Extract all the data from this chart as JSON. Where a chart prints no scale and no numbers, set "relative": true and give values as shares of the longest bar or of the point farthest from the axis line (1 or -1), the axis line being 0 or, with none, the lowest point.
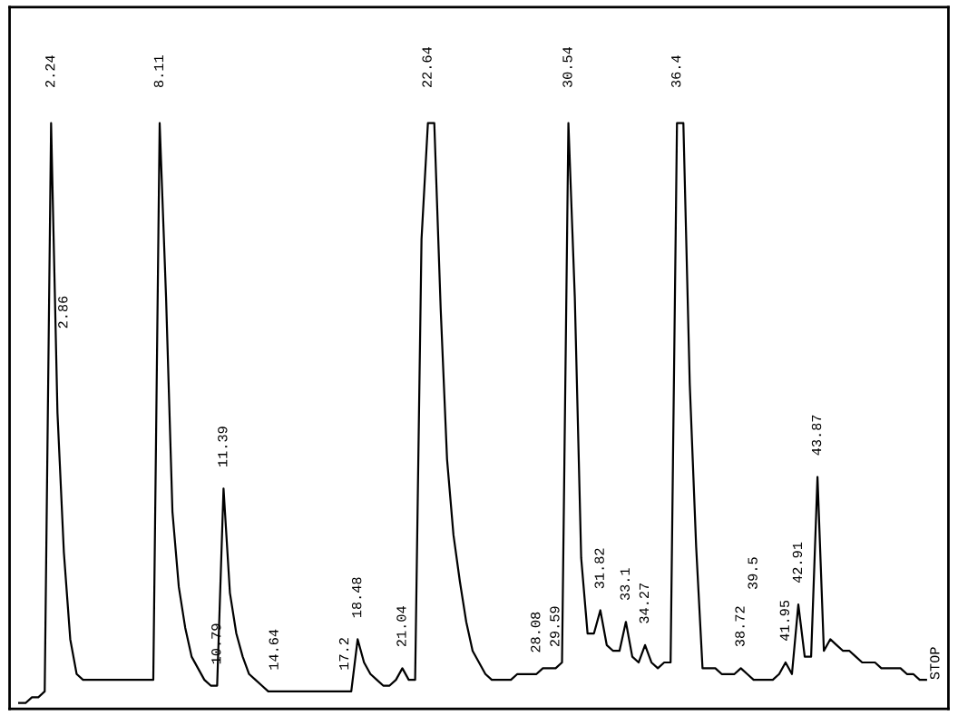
{
  "chart_data": {
    "type": "line",
    "relative": true,
    "marker": "none",
    "line_style": "solid",
    "categories": [
      null,
      null,
      null,
      null,
      null,
      "2.24",
      null,
      "2.86",
      null,
      null,
      null,
      null,
      null,
      null,
      null,
      null,
      null,
      null,
      null,
      null,
      null,
      null,
      "8.11",
      null,
      null,
      null,
      null,
      null,
      null,
      null,
      null,
      "10.79",
      "11.39",
      null,
      null,
      null,
      null,
      null,
      null,
      null,
      "14.64",
      null,
      null,
      null,
      null,
      null,
      null,
      null,
      null,
      null,
      null,
      "17.2",
      null,
      "18.48",
      null,
      null,
      null,
      null,
      null,
      null,
      "21.04",
      null,
      null,
      null,
      "22.64",
      null,
      null,
      null,
      null,
      null,
      null,
      null,
      null,
      null,
      null,
      null,
      null,
      null,
      null,
      null,
      null,
      "28.08",
      null,
      null,
      "29.59",
      null,
      "30.54",
      null,
      null,
      null,
      null,
      "31.82",
      null,
      null,
      null,
      "33.1",
      null,
      null,
      "34.27",
      null,
      null,
      null,
      null,
      "36.4",
      null,
      null,
      null,
      null,
      null,
      null,
      null,
      null,
      null,
      "38.72",
      null,
      "39.5",
      null,
      null,
      null,
      null,
      "41.95",
      null,
      "42.91",
      null,
      null,
      "43.87",
      null,
      null,
      null,
      null,
      null,
      null,
      null,
      null,
      null,
      null,
      null,
      null,
      null,
      null,
      null,
      null,
      null
    ],
    "series": [
      {
        "color": "#000000",
        "values": [
          0.0,
          0.0,
          0.01,
          0.01,
          0.02,
          1.0,
          0.5,
          0.26,
          0.11,
          0.05,
          0.04,
          0.04,
          0.04,
          0.04,
          0.04,
          0.04,
          0.04,
          0.04,
          0.04,
          0.04,
          0.04,
          0.04,
          1.0,
          0.7,
          0.33,
          0.2,
          0.13,
          0.08,
          0.06,
          0.04,
          0.03,
          0.03,
          0.37,
          0.19,
          0.12,
          0.08,
          0.05,
          0.04,
          0.03,
          0.02,
          0.02,
          0.02,
          0.02,
          0.02,
          0.02,
          0.02,
          0.02,
          0.02,
          0.02,
          0.02,
          0.02,
          0.02,
          0.02,
          0.11,
          0.07,
          0.05,
          0.04,
          0.03,
          0.03,
          0.04,
          0.06,
          0.04,
          0.04,
          0.8,
          1.0,
          1.0,
          0.68,
          0.42,
          0.29,
          0.21,
          0.14,
          0.09,
          0.07,
          0.05,
          0.04,
          0.04,
          0.04,
          0.04,
          0.05,
          0.05,
          0.05,
          0.05,
          0.06,
          0.06,
          0.06,
          0.07,
          1.0,
          0.7,
          0.25,
          0.12,
          0.12,
          0.16,
          0.1,
          0.09,
          0.09,
          0.14,
          0.08,
          0.07,
          0.1,
          0.07,
          0.06,
          0.07,
          0.07,
          1.0,
          1.0,
          0.55,
          0.27,
          0.06,
          0.06,
          0.06,
          0.05,
          0.05,
          0.05,
          0.06,
          0.05,
          0.04,
          0.04,
          0.04,
          0.04,
          0.05,
          0.07,
          0.05,
          0.17,
          0.08,
          0.08,
          0.39,
          0.09,
          0.11,
          0.1,
          0.09,
          0.09,
          0.08,
          0.07,
          0.07,
          0.07,
          0.06,
          0.06,
          0.06,
          0.06,
          0.05,
          0.05,
          0.04,
          0.04
        ]
      }
    ],
    "annotations": [
      "STOP"
    ]
  }
}
